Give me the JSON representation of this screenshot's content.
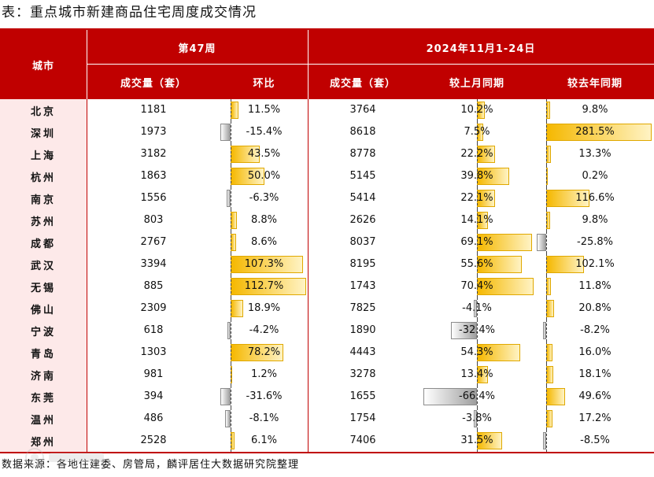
{
  "title": "表：重点城市新建商品住宅周度成交情况",
  "header": {
    "city": "城市",
    "week_group": "第47周",
    "week_volume": "成交量（套）",
    "week_change": "环比",
    "period_group": "2024年11月1-24日",
    "period_volume": "成交量（套）",
    "mom": "较上月同期",
    "yoy": "较去年同期"
  },
  "rows": [
    {
      "city": "北京",
      "week_volume": "1181",
      "week_change": "11.5%",
      "week_change_value": 11.5,
      "period_volume": "3764",
      "mom": "10.2%",
      "mom_value": 10.2,
      "yoy": "9.8%",
      "yoy_value": 9.8
    },
    {
      "city": "深圳",
      "week_volume": "1973",
      "week_change": "-15.4%",
      "week_change_value": -15.4,
      "period_volume": "8618",
      "mom": "7.5%",
      "mom_value": 7.5,
      "yoy": "281.5%",
      "yoy_value": 281.5
    },
    {
      "city": "上海",
      "week_volume": "3182",
      "week_change": "43.5%",
      "week_change_value": 43.5,
      "period_volume": "8778",
      "mom": "22.2%",
      "mom_value": 22.2,
      "yoy": "13.3%",
      "yoy_value": 13.3
    },
    {
      "city": "杭州",
      "week_volume": "1863",
      "week_change": "50.0%",
      "week_change_value": 50.0,
      "period_volume": "5145",
      "mom": "39.8%",
      "mom_value": 39.8,
      "yoy": "0.2%",
      "yoy_value": 0.2
    },
    {
      "city": "南京",
      "week_volume": "1556",
      "week_change": "-6.3%",
      "week_change_value": -6.3,
      "period_volume": "5414",
      "mom": "22.1%",
      "mom_value": 22.1,
      "yoy": "116.6%",
      "yoy_value": 116.6
    },
    {
      "city": "苏州",
      "week_volume": "803",
      "week_change": "8.8%",
      "week_change_value": 8.8,
      "period_volume": "2626",
      "mom": "14.1%",
      "mom_value": 14.1,
      "yoy": "9.8%",
      "yoy_value": 9.8
    },
    {
      "city": "成都",
      "week_volume": "2767",
      "week_change": "8.6%",
      "week_change_value": 8.6,
      "period_volume": "8037",
      "mom": "69.1%",
      "mom_value": 69.1,
      "yoy": "-25.8%",
      "yoy_value": -25.8
    },
    {
      "city": "武汉",
      "week_volume": "3394",
      "week_change": "107.3%",
      "week_change_value": 107.3,
      "period_volume": "8195",
      "mom": "55.6%",
      "mom_value": 55.6,
      "yoy": "102.1%",
      "yoy_value": 102.1
    },
    {
      "city": "无锡",
      "week_volume": "885",
      "week_change": "112.7%",
      "week_change_value": 112.7,
      "period_volume": "1743",
      "mom": "70.4%",
      "mom_value": 70.4,
      "yoy": "11.8%",
      "yoy_value": 11.8
    },
    {
      "city": "佛山",
      "week_volume": "2309",
      "week_change": "18.9%",
      "week_change_value": 18.9,
      "period_volume": "7825",
      "mom": "-4.1%",
      "mom_value": -4.1,
      "yoy": "20.8%",
      "yoy_value": 20.8
    },
    {
      "city": "宁波",
      "week_volume": "618",
      "week_change": "-4.2%",
      "week_change_value": -4.2,
      "period_volume": "1890",
      "mom": "-32.4%",
      "mom_value": -32.4,
      "yoy": "-8.2%",
      "yoy_value": -8.2
    },
    {
      "city": "青岛",
      "week_volume": "1303",
      "week_change": "78.2%",
      "week_change_value": 78.2,
      "period_volume": "4443",
      "mom": "54.3%",
      "mom_value": 54.3,
      "yoy": "16.0%",
      "yoy_value": 16.0
    },
    {
      "city": "济南",
      "week_volume": "981",
      "week_change": "1.2%",
      "week_change_value": 1.2,
      "period_volume": "3278",
      "mom": "13.4%",
      "mom_value": 13.4,
      "yoy": "18.1%",
      "yoy_value": 18.1
    },
    {
      "city": "东莞",
      "week_volume": "394",
      "week_change": "-31.6%",
      "week_change_value": -31.6,
      "period_volume": "1655",
      "mom": "-66.4%",
      "mom_value": -66.4,
      "yoy": "49.6%",
      "yoy_value": 49.6
    },
    {
      "city": "温州",
      "week_volume": "486",
      "week_change": "-8.1%",
      "week_change_value": -8.1,
      "period_volume": "1754",
      "mom": "-3.8%",
      "mom_value": -3.8,
      "yoy": "17.2%",
      "yoy_value": 17.2
    },
    {
      "city": "郑州",
      "week_volume": "2528",
      "week_change": "6.1%",
      "week_change_value": 6.1,
      "period_volume": "7406",
      "mom": "31.5%",
      "mom_value": 31.5,
      "yoy": "-8.5%",
      "yoy_value": -8.5
    }
  ],
  "source": "数据来源：各地住建委、房管局，麟评居住大数据研究院整理",
  "colors": {
    "header_bg": "#c00000",
    "city_bg": "#fde9e9",
    "bar_positive": "#f5b800",
    "bar_negative": "#9e9e9e"
  }
}
